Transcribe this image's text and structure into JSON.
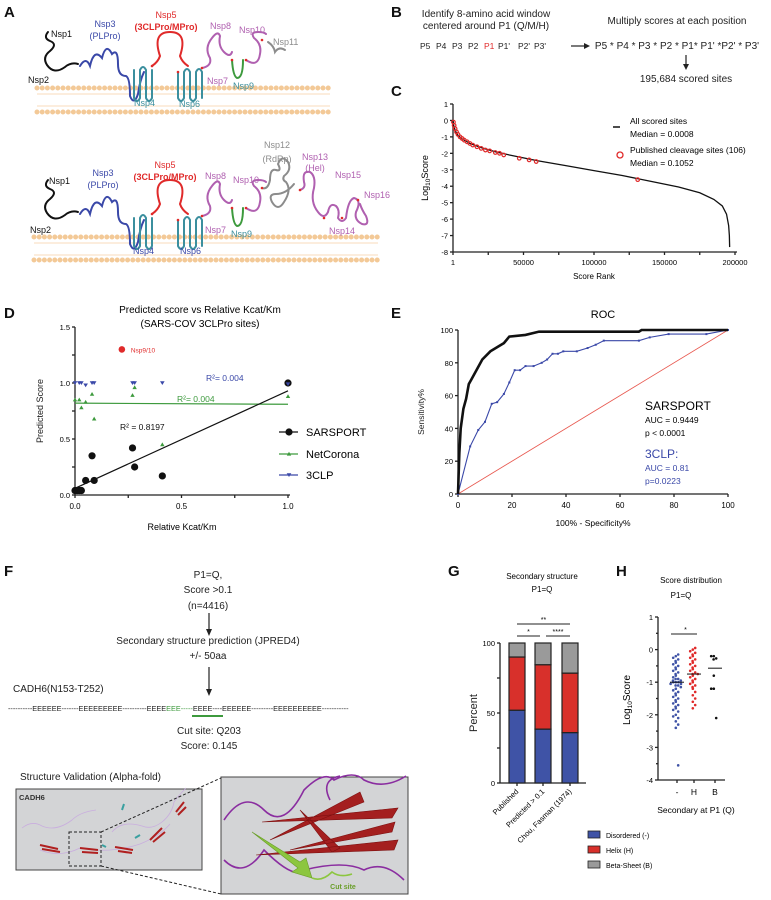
{
  "colors": {
    "black": "#111111",
    "blue": "#3a48a8",
    "red": "#e02a2a",
    "teal": "#3b8f9e",
    "green": "#3d9a3d",
    "purple": "#b060b0",
    "gray": "#8c8c8c",
    "membrane": "#f3c997",
    "disordered": "#3f53a6",
    "helix": "#d8302b",
    "beta": "#9a9a9a"
  },
  "panelA": {
    "label": "A",
    "top": {
      "nsp1": "Nsp1",
      "nsp2": "Nsp2",
      "nsp3": "Nsp3",
      "plpro": "(PLPro)",
      "nsp5": "Nsp5",
      "clpro": "(3CLPro/MPro)",
      "nsp8": "Nsp8",
      "nsp10": "Nsp10",
      "nsp11": "Nsp11",
      "nsp7": "Nsp7",
      "nsp9": "Nsp9",
      "nsp4": "Nsp4",
      "nsp6": "Nsp6"
    },
    "bottom": {
      "nsp1": "Nsp1",
      "nsp2": "Nsp2",
      "nsp3": "Nsp3",
      "plpro": "(PLPro)",
      "nsp5": "Nsp5",
      "clpro": "(3CLPro/MPro)",
      "nsp8": "Nsp8",
      "nsp10": "Nsp10",
      "nsp12": "Nsp12",
      "rdrp": "(RdRp)",
      "nsp13": "Nsp13",
      "hel": "(Hel)",
      "nsp15": "Nsp15",
      "nsp16": "Nsp16",
      "nsp14": "Nsp14",
      "nsp7": "Nsp7",
      "nsp9": "Nsp9",
      "nsp4": "Nsp4",
      "nsp6": "Nsp6"
    }
  },
  "panelB": {
    "label": "B",
    "step1_line1": "Identify 8-amino acid window",
    "step1_line2": "centered around P1 (Q/M/H)",
    "positions": [
      "P5",
      "P4",
      "P3",
      "P2",
      "P1",
      "P1'",
      "P2'",
      "P3'"
    ],
    "step2": "Multiply scores at each position",
    "formula": "P5 * P4 * P3 * P2 * P1* P1' *P2' * P3'",
    "result": "195,684 scored sites"
  },
  "chart_data": [
    {
      "panel": "C",
      "type": "line",
      "xlabel": "Score Rank",
      "ylabel": "Log10Score",
      "xlim": [
        1,
        200000
      ],
      "ylim": [
        -8,
        1
      ],
      "xticks": [
        "1",
        "50000",
        "100000",
        "150000",
        "200000"
      ],
      "yticks": [
        "1",
        "0",
        "-1",
        "-2",
        "-3",
        "-4",
        "-5",
        "-6",
        "-7",
        "-8"
      ],
      "legend": [
        {
          "name": "All scored sites",
          "stat": "Median = 0.0008"
        },
        {
          "name": "Published cleavage sites (106)",
          "stat": "Median = 0.1052"
        }
      ],
      "curve": [
        [
          1,
          0
        ],
        [
          500,
          -0.3
        ],
        [
          1500,
          -0.6
        ],
        [
          3000,
          -0.85
        ],
        [
          6000,
          -1.1
        ],
        [
          12000,
          -1.4
        ],
        [
          20000,
          -1.65
        ],
        [
          30000,
          -1.9
        ],
        [
          40000,
          -2.1
        ],
        [
          60000,
          -2.45
        ],
        [
          80000,
          -2.75
        ],
        [
          100000,
          -3.05
        ],
        [
          120000,
          -3.35
        ],
        [
          140000,
          -3.7
        ],
        [
          160000,
          -4.05
        ],
        [
          175000,
          -4.4
        ],
        [
          185000,
          -4.8
        ],
        [
          191000,
          -5.2
        ],
        [
          194000,
          -5.7
        ],
        [
          195500,
          -6.4
        ],
        [
          196000,
          -7.0
        ],
        [
          196200,
          -7.7
        ]
      ],
      "published": [
        [
          300,
          -0.1
        ],
        [
          800,
          -0.3
        ],
        [
          1500,
          -0.5
        ],
        [
          2500,
          -0.7
        ],
        [
          3500,
          -0.85
        ],
        [
          5000,
          -1.0
        ],
        [
          6500,
          -1.1
        ],
        [
          8000,
          -1.2
        ],
        [
          10000,
          -1.3
        ],
        [
          12000,
          -1.4
        ],
        [
          14000,
          -1.5
        ],
        [
          17000,
          -1.6
        ],
        [
          20000,
          -1.7
        ],
        [
          23000,
          -1.8
        ],
        [
          26000,
          -1.85
        ],
        [
          30000,
          -1.95
        ],
        [
          33000,
          -2.0
        ],
        [
          36000,
          -2.1
        ],
        [
          47000,
          -2.3
        ],
        [
          54000,
          -2.4
        ],
        [
          59000,
          -2.5
        ],
        [
          131000,
          -3.6
        ]
      ]
    },
    {
      "panel": "D",
      "type": "scatter",
      "title": "Predicted score vs Relative Kcat/Km",
      "subtitle": "(SARS-COV 3CLPro sites)",
      "xlabel": "Relative Kcat/Km",
      "ylabel": "Predicted Score",
      "xlim": [
        0,
        1
      ],
      "ylim": [
        0,
        1.5
      ],
      "xticks": [
        "0.0",
        "0.5",
        "1.0"
      ],
      "yticks": [
        "0.0",
        "0.5",
        "1.0",
        "1.5"
      ],
      "series": [
        {
          "name": "SARSPORT",
          "color": "#111111",
          "r2": "R² = 0.8197",
          "fit": [
            [
              0,
              0.06
            ],
            [
              1,
              0.93
            ]
          ],
          "points": [
            [
              0,
              0.04
            ],
            [
              0.01,
              0.04
            ],
            [
              0.02,
              0.04
            ],
            [
              0.03,
              0.04
            ],
            [
              0.05,
              0.13
            ],
            [
              0.08,
              0.35
            ],
            [
              0.09,
              0.13
            ],
            [
              0.27,
              0.42
            ],
            [
              0.28,
              0.25
            ],
            [
              0.41,
              0.17
            ],
            [
              1.0,
              1.0
            ]
          ]
        },
        {
          "name": "NetCorona",
          "color": "#3d9a3d",
          "r2": "R²= 0.004",
          "fit": [
            [
              0,
              0.82
            ],
            [
              1,
              0.81
            ]
          ],
          "points": [
            [
              0,
              0.85
            ],
            [
              0.02,
              0.85
            ],
            [
              0.03,
              0.78
            ],
            [
              0.05,
              0.83
            ],
            [
              0.08,
              0.9
            ],
            [
              0.09,
              0.68
            ],
            [
              0.27,
              0.89
            ],
            [
              0.28,
              0.96
            ],
            [
              0.41,
              0.45
            ],
            [
              1.0,
              0.88
            ]
          ]
        },
        {
          "name": "3CLP",
          "color": "#3a48a8",
          "r2": "R²= 0.004",
          "points": [
            [
              0,
              1.0
            ],
            [
              0.02,
              1.0
            ],
            [
              0.03,
              1.0
            ],
            [
              0.05,
              0.98
            ],
            [
              0.08,
              1.0
            ],
            [
              0.09,
              1.0
            ],
            [
              0.27,
              1.0
            ],
            [
              0.28,
              1.0
            ],
            [
              0.41,
              1.0
            ],
            [
              1.0,
              0.99
            ]
          ]
        }
      ],
      "outlier": {
        "label": "Nsp9/10",
        "x": 0.22,
        "y": 1.3,
        "color": "#e02a2a"
      }
    },
    {
      "panel": "E",
      "type": "line",
      "title": "ROC",
      "xlabel": "100% - Specificity%",
      "ylabel": "Sensitivity%",
      "xlim": [
        0,
        100
      ],
      "ylim": [
        0,
        100
      ],
      "xticks": [
        "0",
        "20",
        "40",
        "60",
        "80",
        "100"
      ],
      "yticks": [
        "0",
        "20",
        "40",
        "60",
        "80",
        "100"
      ],
      "series": [
        {
          "name": "SARSPORT",
          "auc": "AUC = 0.9449",
          "p": "p < 0.0001",
          "color": "#111111",
          "points": [
            [
              0,
              0
            ],
            [
              0.5,
              25
            ],
            [
              1,
              40
            ],
            [
              2,
              52
            ],
            [
              3,
              58
            ],
            [
              4,
              67
            ],
            [
              5,
              70
            ],
            [
              7,
              76
            ],
            [
              9,
              82
            ],
            [
              12,
              87
            ],
            [
              15,
              90
            ],
            [
              17,
              92
            ],
            [
              19,
              96
            ],
            [
              25,
              97
            ],
            [
              30,
              99
            ],
            [
              67,
              99
            ],
            [
              68,
              100
            ],
            [
              100,
              100
            ]
          ]
        },
        {
          "name": "3CLP:",
          "auc": "AUC = 0.81",
          "p": "p=0.0223",
          "color": "#3a48a8",
          "points": [
            [
              0,
              0
            ],
            [
              4.5,
              29
            ],
            [
              7.5,
              39
            ],
            [
              10,
              44
            ],
            [
              12.5,
              55
            ],
            [
              14.5,
              56
            ],
            [
              17,
              61
            ],
            [
              19,
              68
            ],
            [
              21,
              75.5
            ],
            [
              23,
              75.5
            ],
            [
              25,
              78
            ],
            [
              28,
              78
            ],
            [
              31,
              80
            ],
            [
              33,
              82
            ],
            [
              35,
              85.5
            ],
            [
              37,
              85.5
            ],
            [
              39,
              87
            ],
            [
              44,
              87
            ],
            [
              48,
              89
            ],
            [
              51,
              91
            ],
            [
              54,
              93.5
            ],
            [
              67,
              93.5
            ],
            [
              71,
              95.5
            ],
            [
              78,
              97.5
            ],
            [
              92,
              97.5
            ],
            [
              100,
              100
            ]
          ]
        }
      ],
      "reference": {
        "points": [
          [
            0,
            0
          ],
          [
            100,
            100
          ]
        ],
        "color": "#e8584f"
      }
    },
    {
      "panel": "G",
      "type": "bar",
      "stacked": true,
      "title": "Secondary structure",
      "subtitle": "P1=Q",
      "ylabel": "Percent",
      "ylim": [
        0,
        100
      ],
      "yticks": [
        "0",
        "50",
        "100"
      ],
      "categories": [
        "Published",
        "Predicted > 0.1",
        "Chou, Fasman (1974)"
      ],
      "series": [
        {
          "name": "Disordered (-)",
          "color": "#3f53a6",
          "values": [
            52,
            38.5,
            36
          ]
        },
        {
          "name": "Helix (H)",
          "color": "#d8302b",
          "values": [
            38,
            46,
            42.5
          ]
        },
        {
          "name": "Beta-Sheet (B)",
          "color": "#9a9a9a",
          "values": [
            10,
            15.5,
            21.5
          ]
        }
      ],
      "significance": [
        {
          "from": 0,
          "to": 2,
          "label": "**"
        },
        {
          "from": 0,
          "to": 1,
          "label": "*"
        },
        {
          "from": 1,
          "to": 2,
          "label": "****"
        }
      ]
    },
    {
      "panel": "H",
      "type": "scatter",
      "title": "Score distribution",
      "subtitle": "P1=Q",
      "xlabel": "Secondary at P1 (Q)",
      "ylabel": "Log10Score",
      "ylim": [
        -4,
        1
      ],
      "yticks": [
        "1",
        "0",
        "-1",
        "-2",
        "-3",
        "-4"
      ],
      "categories": [
        "-",
        "H",
        "B"
      ],
      "groups": [
        {
          "name": "-",
          "color": "#3f53a6",
          "median": -1.0,
          "values": [
            -0.15,
            -0.2,
            -0.25,
            -0.3,
            -0.35,
            -0.4,
            -0.45,
            -0.5,
            -0.55,
            -0.6,
            -0.65,
            -0.7,
            -0.75,
            -0.8,
            -0.85,
            -0.9,
            -0.9,
            -0.95,
            -0.95,
            -1.0,
            -1.0,
            -1.0,
            -1.05,
            -1.05,
            -1.1,
            -1.1,
            -1.15,
            -1.2,
            -1.25,
            -1.3,
            -1.35,
            -1.4,
            -1.45,
            -1.5,
            -1.55,
            -1.6,
            -1.65,
            -1.7,
            -1.75,
            -1.8,
            -1.85,
            -1.9,
            -2.0,
            -2.05,
            -2.1,
            -2.2,
            -2.3,
            -2.4,
            -3.55
          ]
        },
        {
          "name": "H",
          "color": "#e02a2a",
          "median": -0.75,
          "values": [
            0.05,
            0.0,
            -0.05,
            -0.1,
            -0.15,
            -0.2,
            -0.25,
            -0.3,
            -0.35,
            -0.4,
            -0.45,
            -0.5,
            -0.55,
            -0.6,
            -0.65,
            -0.7,
            -0.75,
            -0.75,
            -0.8,
            -0.85,
            -0.9,
            -0.95,
            -1.0,
            -1.05,
            -1.1,
            -1.15,
            -1.2,
            -1.3,
            -1.4,
            -1.5,
            -1.6,
            -1.7,
            -1.8
          ]
        },
        {
          "name": "B",
          "color": "#111111",
          "median": -0.57,
          "values": [
            -0.2,
            -0.2,
            -0.27,
            -0.3,
            -0.8,
            -1.2,
            -1.2,
            -2.1
          ]
        }
      ],
      "significance": [
        {
          "from": 0,
          "to": 1,
          "label": "*"
        }
      ]
    }
  ],
  "panelC": {
    "label": "C"
  },
  "panelD": {
    "label": "D"
  },
  "panelE": {
    "label": "E"
  },
  "panelF": {
    "label": "F",
    "criteria1": "P1=Q,",
    "criteria2": "Score >0.1",
    "criteria3": "(n=4416)",
    "step": "Secondary structure prediction (JPRED4)",
    "window": "+/- 50aa",
    "protein": "CADH6(N153-T252)",
    "seq_left": "----------EEEEEE-------EEEEEEEEE----------EEEE",
    "seq_cut": "EEE-----",
    "seq_right": "EEEE----EEEEEE---------EEEEEEEEEE-----------",
    "cut_site": "Cut site: Q203",
    "score": "Score: 0.145",
    "validation": "Structure Validation (Alpha-fold)",
    "structure_name": "CADH6",
    "zoom_label": "Cut site"
  },
  "panelG": {
    "label": "G"
  },
  "panelH": {
    "label": "H"
  }
}
